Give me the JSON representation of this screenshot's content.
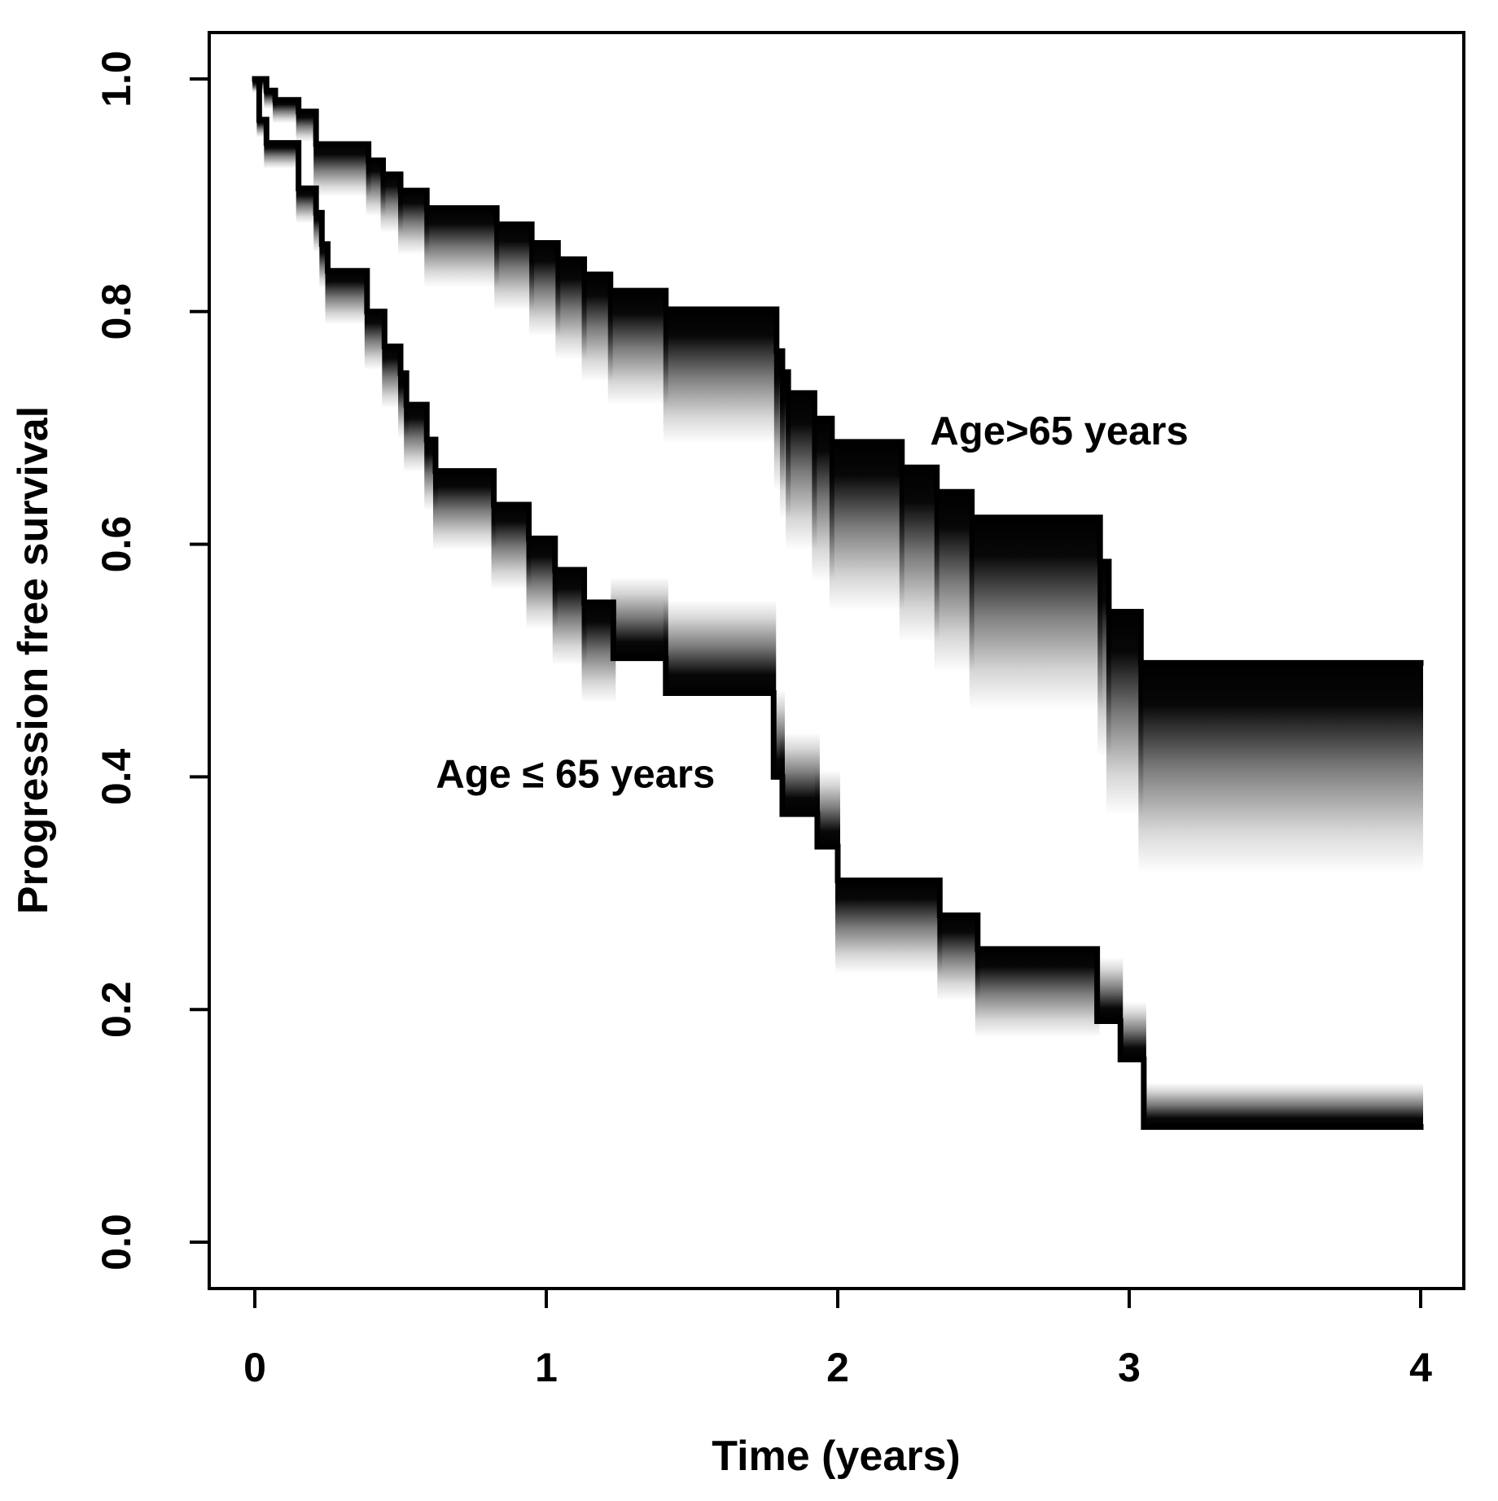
{
  "figure": {
    "background": "#ffffff",
    "curve_color": "#000000",
    "band_fade_color": "#ffffff"
  },
  "chart_data": {
    "type": "line",
    "subtype": "kaplan-meier-step-curves-with-gradient-confidence-bands",
    "title": "",
    "xlabel": "Time (years)",
    "ylabel": "Progression free survival",
    "xlim": [
      -0.16,
      4.16
    ],
    "ylim": [
      -0.04,
      1.04
    ],
    "grid": false,
    "legend_position": "inline-annotations",
    "xticks": {
      "values": [
        0,
        1,
        2,
        3,
        4
      ],
      "labels": [
        "0",
        "1",
        "2",
        "3",
        "4"
      ]
    },
    "yticks": {
      "values": [
        0,
        0.2,
        0.4,
        0.6,
        0.8,
        1.0
      ],
      "labels": [
        "0.0",
        "0.2",
        "0.4",
        "0.6",
        "0.8",
        "1.0"
      ]
    },
    "series": [
      {
        "name": "Age>65 years",
        "label_x": 2.76,
        "label_y": 0.695,
        "segments": [
          [
            0.0,
            0.04,
            1.0,
            0.012,
            "down"
          ],
          [
            0.04,
            0.07,
            0.99,
            0.016,
            "down"
          ],
          [
            0.07,
            0.15,
            0.982,
            0.02,
            "down"
          ],
          [
            0.15,
            0.21,
            0.972,
            0.026,
            "down"
          ],
          [
            0.21,
            0.39,
            0.944,
            0.045,
            "down"
          ],
          [
            0.39,
            0.44,
            0.93,
            0.048,
            "down"
          ],
          [
            0.44,
            0.5,
            0.918,
            0.05,
            "down"
          ],
          [
            0.5,
            0.59,
            0.904,
            0.055,
            "down"
          ],
          [
            0.59,
            0.83,
            0.889,
            0.068,
            "down"
          ],
          [
            0.83,
            0.95,
            0.875,
            0.074,
            "down"
          ],
          [
            0.95,
            1.04,
            0.859,
            0.08,
            "down"
          ],
          [
            1.04,
            1.13,
            0.845,
            0.086,
            "down"
          ],
          [
            1.13,
            1.22,
            0.832,
            0.092,
            "down"
          ],
          [
            1.22,
            1.41,
            0.818,
            0.098,
            "down"
          ],
          [
            1.41,
            1.79,
            0.802,
            0.115,
            "down"
          ],
          [
            1.79,
            1.81,
            0.766,
            0.12,
            "down"
          ],
          [
            1.81,
            1.83,
            0.748,
            0.126,
            "down"
          ],
          [
            1.83,
            1.92,
            0.73,
            0.135,
            "down"
          ],
          [
            1.92,
            1.98,
            0.708,
            0.14,
            "down"
          ],
          [
            1.98,
            2.22,
            0.688,
            0.145,
            "down"
          ],
          [
            2.22,
            2.34,
            0.666,
            0.15,
            "down"
          ],
          [
            2.34,
            2.46,
            0.645,
            0.155,
            "down"
          ],
          [
            2.46,
            2.9,
            0.623,
            0.165,
            "down"
          ],
          [
            2.9,
            2.93,
            0.585,
            0.168,
            "down"
          ],
          [
            2.93,
            3.04,
            0.542,
            0.175,
            "down"
          ],
          [
            3.04,
            4.0,
            0.498,
            0.18,
            "down"
          ]
        ]
      },
      {
        "name": "Age ≤ 65 years",
        "label_x": 1.1,
        "label_y": 0.4,
        "segments": [
          [
            0.0,
            0.015,
            1.0,
            0.01,
            "down"
          ],
          [
            0.015,
            0.04,
            0.965,
            0.015,
            "down"
          ],
          [
            0.04,
            0.15,
            0.945,
            0.022,
            "down"
          ],
          [
            0.15,
            0.21,
            0.906,
            0.03,
            "down"
          ],
          [
            0.21,
            0.23,
            0.885,
            0.034,
            "down"
          ],
          [
            0.23,
            0.25,
            0.858,
            0.038,
            "down"
          ],
          [
            0.25,
            0.385,
            0.835,
            0.046,
            "down"
          ],
          [
            0.385,
            0.445,
            0.8,
            0.05,
            "down"
          ],
          [
            0.445,
            0.5,
            0.77,
            0.053,
            "down"
          ],
          [
            0.5,
            0.52,
            0.747,
            0.056,
            "down"
          ],
          [
            0.52,
            0.59,
            0.72,
            0.058,
            "down"
          ],
          [
            0.59,
            0.62,
            0.69,
            0.061,
            "down"
          ],
          [
            0.62,
            0.82,
            0.663,
            0.068,
            "down"
          ],
          [
            0.82,
            0.94,
            0.634,
            0.073,
            "down"
          ],
          [
            0.94,
            1.03,
            0.605,
            0.078,
            "down"
          ],
          [
            1.03,
            1.13,
            0.578,
            0.082,
            "down"
          ],
          [
            1.13,
            1.23,
            0.55,
            0.086,
            "down"
          ],
          [
            1.23,
            1.41,
            0.502,
            0.07,
            "up"
          ],
          [
            1.41,
            1.78,
            0.472,
            0.08,
            "up"
          ],
          [
            1.78,
            1.81,
            0.4,
            0.075,
            "up"
          ],
          [
            1.81,
            1.93,
            0.368,
            0.07,
            "up"
          ],
          [
            1.93,
            2.0,
            0.34,
            0.066,
            "up"
          ],
          [
            2.0,
            2.35,
            0.311,
            0.08,
            "down"
          ],
          [
            2.35,
            2.48,
            0.281,
            0.073,
            "down"
          ],
          [
            2.48,
            2.89,
            0.252,
            0.076,
            "down"
          ],
          [
            2.89,
            2.97,
            0.19,
            0.055,
            "up"
          ],
          [
            2.97,
            3.05,
            0.157,
            0.05,
            "up"
          ],
          [
            3.05,
            4.0,
            0.099,
            0.038,
            "up"
          ]
        ]
      }
    ]
  }
}
